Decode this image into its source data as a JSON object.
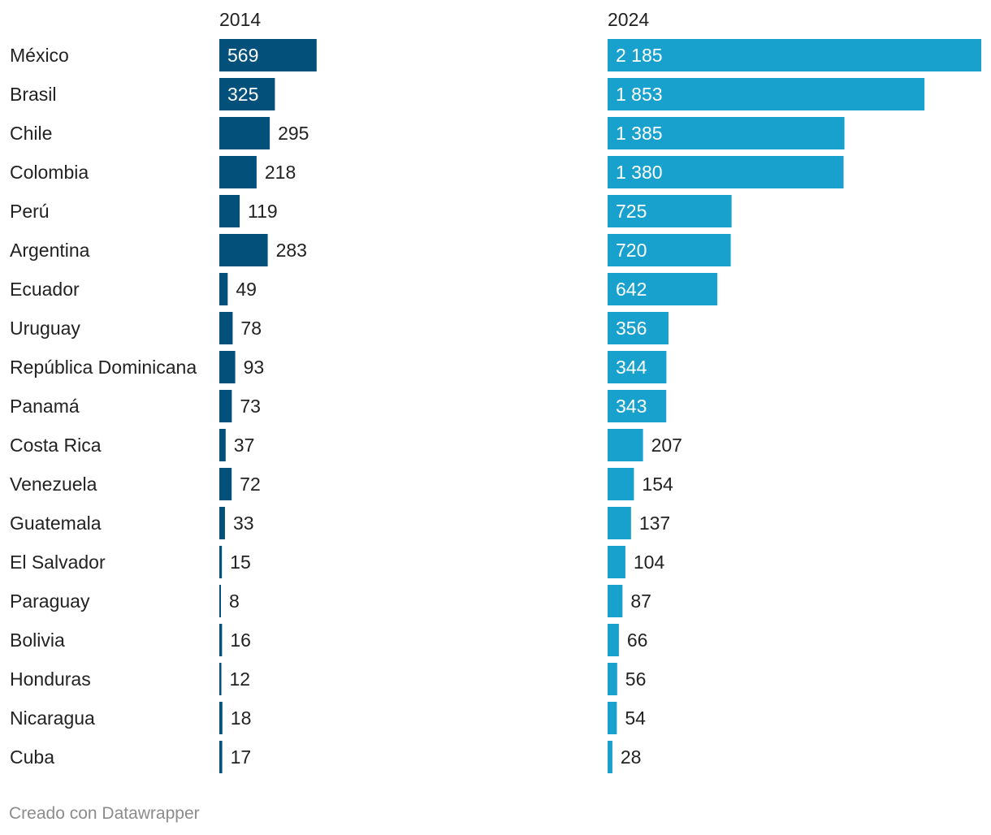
{
  "chart_data": {
    "type": "bar",
    "orientation": "horizontal",
    "layout": "split-bars",
    "categories": [
      "México",
      "Brasil",
      "Chile",
      "Colombia",
      "Perú",
      "Argentina",
      "Ecuador",
      "Uruguay",
      "República Dominicana",
      "Panamá",
      "Costa Rica",
      "Venezuela",
      "Guatemala",
      "El Salvador",
      "Paraguay",
      "Bolivia",
      "Honduras",
      "Nicaragua",
      "Cuba"
    ],
    "series": [
      {
        "name": "2014",
        "color": "#03507a",
        "values": [
          569,
          325,
          295,
          218,
          119,
          283,
          49,
          78,
          93,
          73,
          37,
          72,
          33,
          15,
          8,
          16,
          12,
          18,
          17
        ],
        "labels": [
          "569",
          "325",
          "295",
          "218",
          "119",
          "283",
          "49",
          "78",
          "93",
          "73",
          "37",
          "72",
          "33",
          "15",
          "8",
          "16",
          "12",
          "18",
          "17"
        ]
      },
      {
        "name": "2024",
        "color": "#18a1cd",
        "values": [
          2185,
          1853,
          1385,
          1380,
          725,
          720,
          642,
          356,
          344,
          343,
          207,
          154,
          137,
          104,
          87,
          66,
          56,
          54,
          28
        ],
        "labels": [
          "2 185",
          "1 853",
          "1 385",
          "1 380",
          "725",
          "720",
          "642",
          "356",
          "344",
          "343",
          "207",
          "154",
          "137",
          "104",
          "87",
          "66",
          "56",
          "54",
          "28"
        ]
      }
    ],
    "xlim": [
      0,
      2185
    ],
    "grid": false,
    "legend": "none"
  },
  "footer": {
    "credit": "Creado con Datawrapper"
  }
}
